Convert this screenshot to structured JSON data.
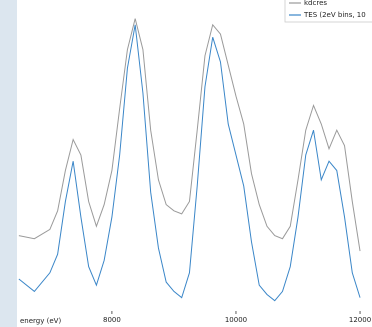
{
  "chart_data": {
    "type": "line",
    "x_label": "energy (eV)",
    "x": [
      6500,
      6750,
      7000,
      7125,
      7250,
      7375,
      7500,
      7625,
      7750,
      7875,
      8000,
      8125,
      8250,
      8375,
      8500,
      8625,
      8750,
      8875,
      9000,
      9125,
      9250,
      9375,
      9500,
      9625,
      9750,
      9875,
      10000,
      10125,
      10250,
      10375,
      10500,
      10625,
      10750,
      10875,
      11000,
      11125,
      11250,
      11375,
      11500,
      11625,
      11750,
      11875,
      12000
    ],
    "series": [
      {
        "name": "kdcres",
        "color": "#9a9a9a",
        "values": [
          24,
          23,
          26,
          32,
          45,
          55,
          50,
          35,
          27,
          34,
          45,
          65,
          84,
          94,
          84,
          58,
          42,
          34,
          32,
          31,
          35,
          58,
          82,
          92,
          89,
          79,
          69,
          60,
          44,
          34,
          27,
          24,
          23,
          27,
          42,
          58,
          66,
          60,
          52,
          58,
          53,
          35,
          19
        ]
      },
      {
        "name": "TES (2eV bins, 10",
        "color": "#3a86c8",
        "values": [
          10,
          6,
          12,
          18,
          35,
          48,
          30,
          14,
          8,
          16,
          30,
          50,
          78,
          92,
          70,
          38,
          20,
          9,
          6,
          4,
          12,
          40,
          72,
          88,
          80,
          60,
          50,
          40,
          22,
          8,
          5,
          3,
          6,
          14,
          30,
          50,
          58,
          42,
          48,
          45,
          30,
          12,
          4
        ]
      }
    ],
    "xlim": [
      6470,
      12080
    ],
    "ylim": [
      0,
      100
    ],
    "xticks": [
      8000,
      10000,
      12000
    ],
    "legend": "upper right"
  }
}
